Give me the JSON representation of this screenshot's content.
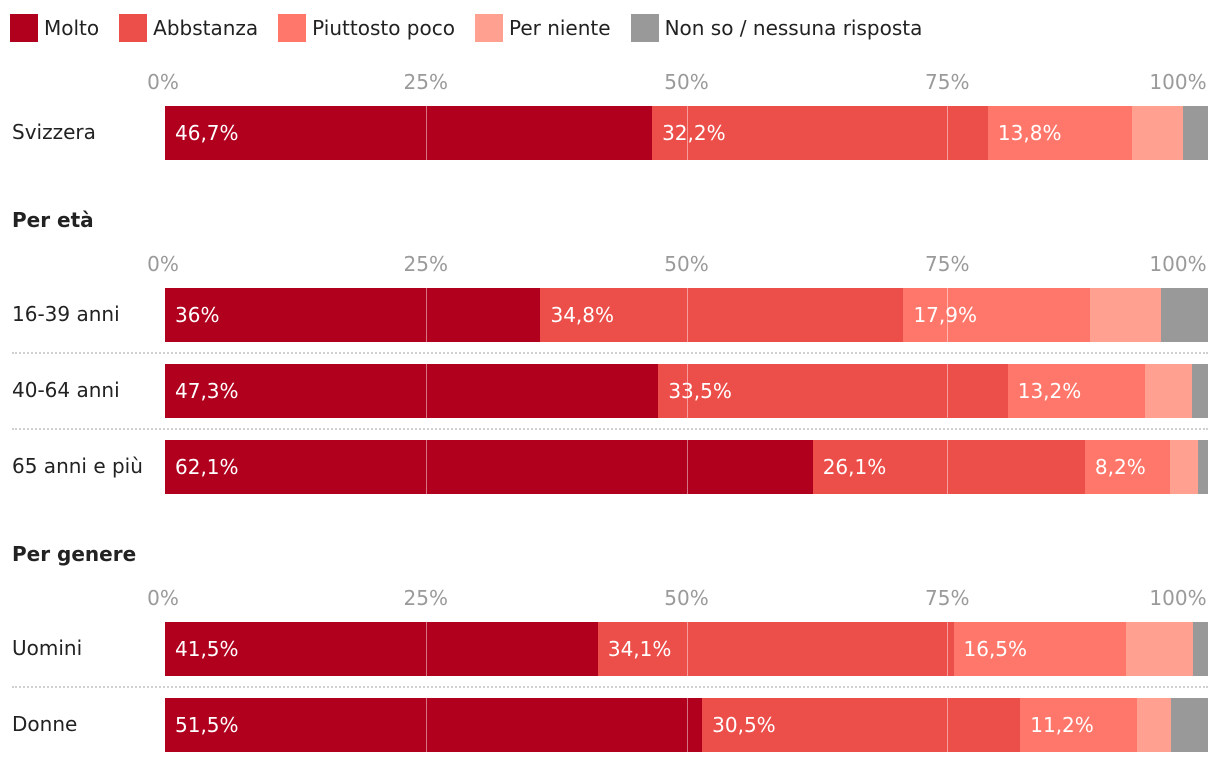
{
  "legend": [
    {
      "name": "Molto",
      "color": "#b0001e"
    },
    {
      "name": "Abbstanza",
      "color": "#ec4e4a"
    },
    {
      "name": "Piuttosto poco",
      "color": "#ff776a"
    },
    {
      "name": "Per niente",
      "color": "#ffa090"
    },
    {
      "name": "Non so / nessuna risposta",
      "color": "#999999"
    }
  ],
  "chart_data": {
    "type": "bar",
    "orientation": "horizontal",
    "stacked": true,
    "xlim": [
      0,
      100
    ],
    "ticks": [
      "0%",
      "25%",
      "50%",
      "75%",
      "100%"
    ],
    "series": [
      {
        "name": "Molto",
        "color": "#b0001e"
      },
      {
        "name": "Abbstanza",
        "color": "#ec4e4a"
      },
      {
        "name": "Piuttosto poco",
        "color": "#ff776a"
      },
      {
        "name": "Per niente",
        "color": "#ffa090"
      },
      {
        "name": "Non so / nessuna risposta",
        "color": "#999999"
      }
    ],
    "groups": [
      {
        "title": "",
        "rows": [
          {
            "label": "Svizzera",
            "values": [
              46.7,
              32.2,
              13.8,
              4.9,
              2.4
            ],
            "value_labels": [
              "46,7%",
              "32,2%",
              "13,8%",
              "",
              ""
            ]
          }
        ]
      },
      {
        "title": "Per età",
        "rows": [
          {
            "label": "16-39 anni",
            "values": [
              36,
              34.8,
              17.9,
              6.8,
              4.5
            ],
            "value_labels": [
              "36%",
              "34,8%",
              "17,9%",
              "",
              ""
            ]
          },
          {
            "label": "40-64 anni",
            "values": [
              47.3,
              33.5,
              13.2,
              4.5,
              1.5
            ],
            "value_labels": [
              "47,3%",
              "33,5%",
              "13,2%",
              "",
              ""
            ]
          },
          {
            "label": "65 anni e più",
            "values": [
              62.1,
              26.1,
              8.2,
              2.6,
              1.0
            ],
            "value_labels": [
              "62,1%",
              "26,1%",
              "8,2%",
              "",
              ""
            ]
          }
        ]
      },
      {
        "title": "Per genere",
        "rows": [
          {
            "label": "Uomini",
            "values": [
              41.5,
              34.1,
              16.5,
              6.5,
              1.4
            ],
            "value_labels": [
              "41,5%",
              "34,1%",
              "16,5%",
              "",
              ""
            ]
          },
          {
            "label": "Donne",
            "values": [
              51.5,
              30.5,
              11.2,
              3.3,
              3.5
            ],
            "value_labels": [
              "51,5%",
              "30,5%",
              "11,2%",
              "",
              ""
            ]
          }
        ]
      }
    ]
  }
}
